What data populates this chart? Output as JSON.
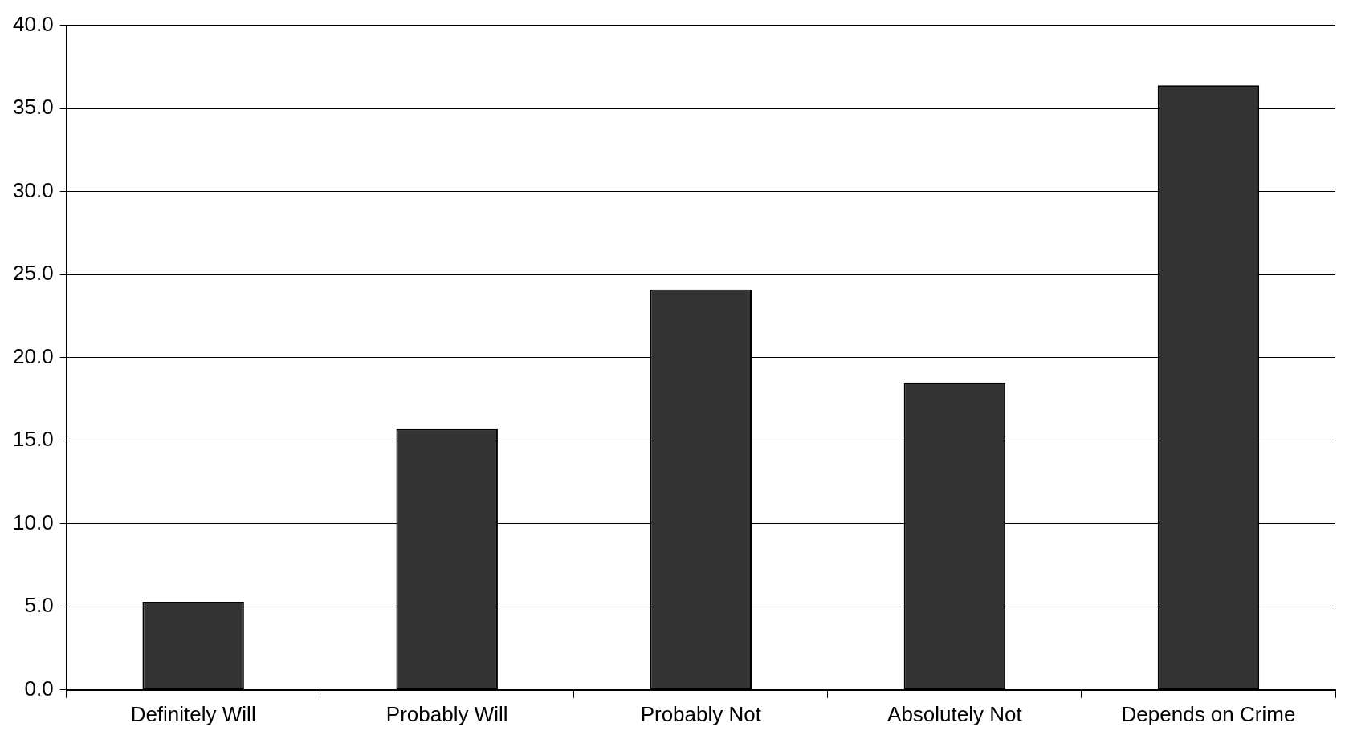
{
  "chart_data": {
    "type": "bar",
    "categories": [
      "Definitely Will",
      "Probably Will",
      "Probably Not",
      "Absolutely Not",
      "Depends on Crime"
    ],
    "values": [
      5.3,
      15.7,
      24.1,
      18.5,
      36.4
    ],
    "color": "#333333",
    "ylim": [
      0,
      40
    ],
    "yticks": [
      {
        "value": 0,
        "label": "0.0"
      },
      {
        "value": 5,
        "label": "5.0"
      },
      {
        "value": 10,
        "label": "10.0"
      },
      {
        "value": 15,
        "label": "15.0"
      },
      {
        "value": 20,
        "label": "20.0"
      },
      {
        "value": 25,
        "label": "25.0"
      },
      {
        "value": 30,
        "label": "30.0"
      },
      {
        "value": 35,
        "label": "35.0"
      },
      {
        "value": 40,
        "label": "40.0"
      }
    ],
    "grid": "y",
    "legend": false
  }
}
